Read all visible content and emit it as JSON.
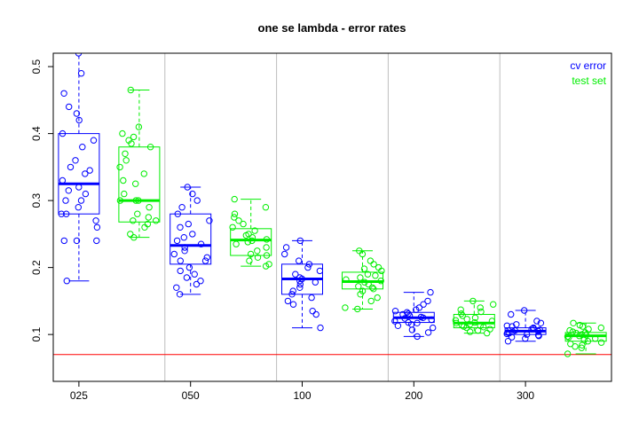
{
  "chart_data": {
    "type": "box",
    "title": "one se lambda - error rates",
    "xlabel": "",
    "ylabel": "",
    "categories": [
      "025",
      "050",
      "100",
      "200",
      "300"
    ],
    "ylim": [
      0.03,
      0.52
    ],
    "yticks": [
      "0.1",
      "0.2",
      "0.3",
      "0.4",
      "0.5"
    ],
    "grid": false,
    "legend_position": "top-right",
    "reference_line": {
      "y": 0.07,
      "color": "#ff0000"
    },
    "series": [
      {
        "name": "cv error",
        "color": "#0000ff",
        "boxes": [
          {
            "min": 0.18,
            "q1": 0.28,
            "median": 0.325,
            "q3": 0.4,
            "max": 0.52
          },
          {
            "min": 0.16,
            "q1": 0.205,
            "median": 0.233,
            "q3": 0.28,
            "max": 0.32
          },
          {
            "min": 0.11,
            "q1": 0.16,
            "median": 0.183,
            "q3": 0.205,
            "max": 0.24
          },
          {
            "min": 0.097,
            "q1": 0.118,
            "median": 0.125,
            "q3": 0.133,
            "max": 0.163
          },
          {
            "min": 0.09,
            "q1": 0.1,
            "median": 0.105,
            "q3": 0.11,
            "max": 0.136
          }
        ],
        "points": [
          [
            0.52,
            0.49,
            0.46,
            0.44,
            0.43,
            0.42,
            0.4,
            0.39,
            0.38,
            0.36,
            0.35,
            0.345,
            0.34,
            0.33,
            0.32,
            0.315,
            0.31,
            0.3,
            0.3,
            0.29,
            0.28,
            0.28,
            0.27,
            0.26,
            0.24,
            0.24,
            0.24,
            0.18
          ],
          [
            0.32,
            0.31,
            0.3,
            0.29,
            0.28,
            0.27,
            0.265,
            0.26,
            0.25,
            0.245,
            0.24,
            0.235,
            0.23,
            0.225,
            0.22,
            0.215,
            0.21,
            0.21,
            0.2,
            0.195,
            0.19,
            0.185,
            0.18,
            0.175,
            0.17,
            0.16
          ],
          [
            0.24,
            0.23,
            0.22,
            0.21,
            0.205,
            0.2,
            0.195,
            0.19,
            0.185,
            0.183,
            0.18,
            0.178,
            0.175,
            0.17,
            0.165,
            0.16,
            0.155,
            0.15,
            0.145,
            0.135,
            0.13,
            0.11
          ],
          [
            0.163,
            0.15,
            0.145,
            0.14,
            0.137,
            0.135,
            0.133,
            0.131,
            0.13,
            0.128,
            0.126,
            0.125,
            0.124,
            0.122,
            0.12,
            0.118,
            0.117,
            0.115,
            0.113,
            0.11,
            0.107,
            0.103,
            0.097
          ],
          [
            0.136,
            0.13,
            0.12,
            0.117,
            0.115,
            0.113,
            0.112,
            0.11,
            0.109,
            0.108,
            0.107,
            0.106,
            0.105,
            0.104,
            0.103,
            0.102,
            0.101,
            0.1,
            0.099,
            0.098,
            0.096,
            0.094,
            0.09
          ]
        ]
      },
      {
        "name": "test set",
        "color": "#00ee00",
        "boxes": [
          {
            "min": 0.245,
            "q1": 0.268,
            "median": 0.3,
            "q3": 0.38,
            "max": 0.465
          },
          {
            "min": 0.202,
            "q1": 0.218,
            "median": 0.241,
            "q3": 0.258,
            "max": 0.302
          },
          {
            "min": 0.138,
            "q1": 0.168,
            "median": 0.179,
            "q3": 0.193,
            "max": 0.225
          },
          {
            "min": 0.102,
            "q1": 0.11,
            "median": 0.117,
            "q3": 0.13,
            "max": 0.15
          },
          {
            "min": 0.071,
            "q1": 0.09,
            "median": 0.098,
            "q3": 0.103,
            "max": 0.117
          }
        ],
        "points": [
          [
            0.465,
            0.41,
            0.4,
            0.395,
            0.39,
            0.385,
            0.38,
            0.37,
            0.36,
            0.35,
            0.34,
            0.33,
            0.325,
            0.31,
            0.3,
            0.3,
            0.3,
            0.29,
            0.28,
            0.275,
            0.27,
            0.27,
            0.265,
            0.26,
            0.25,
            0.245
          ],
          [
            0.302,
            0.29,
            0.28,
            0.275,
            0.27,
            0.265,
            0.26,
            0.255,
            0.25,
            0.248,
            0.245,
            0.242,
            0.24,
            0.238,
            0.235,
            0.23,
            0.225,
            0.22,
            0.218,
            0.215,
            0.21,
            0.205,
            0.202
          ],
          [
            0.225,
            0.22,
            0.21,
            0.205,
            0.2,
            0.198,
            0.195,
            0.19,
            0.188,
            0.185,
            0.182,
            0.18,
            0.178,
            0.175,
            0.172,
            0.17,
            0.168,
            0.165,
            0.16,
            0.155,
            0.15,
            0.14,
            0.138
          ],
          [
            0.15,
            0.145,
            0.14,
            0.137,
            0.134,
            0.131,
            0.128,
            0.125,
            0.123,
            0.121,
            0.12,
            0.118,
            0.117,
            0.115,
            0.114,
            0.113,
            0.112,
            0.111,
            0.11,
            0.108,
            0.106,
            0.104,
            0.102
          ],
          [
            0.117,
            0.114,
            0.112,
            0.11,
            0.108,
            0.106,
            0.104,
            0.103,
            0.102,
            0.1,
            0.099,
            0.098,
            0.097,
            0.096,
            0.094,
            0.092,
            0.09,
            0.088,
            0.086,
            0.084,
            0.082,
            0.08,
            0.071
          ]
        ]
      }
    ],
    "legend": [
      "cv error",
      "test set"
    ]
  }
}
